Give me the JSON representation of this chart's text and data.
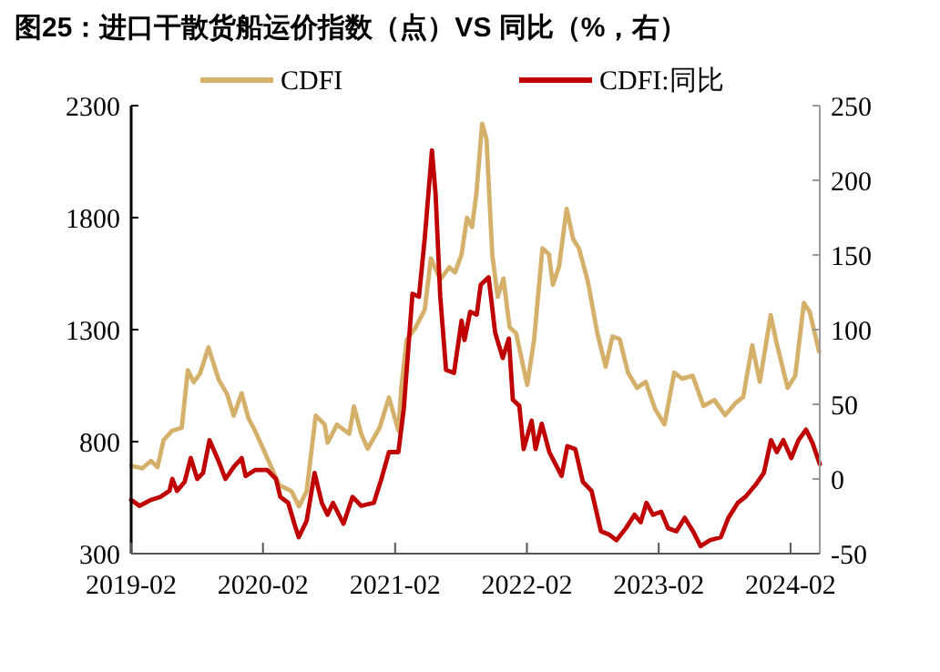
{
  "chart_data": {
    "type": "line",
    "title": "图25：进口干散货船运价指数（点）VS 同比（%，右）",
    "legend": "top",
    "grid": false,
    "line_style": "solid",
    "marker": "none",
    "xlim": [
      "2019-02-01",
      "2024-04-22"
    ],
    "xticks": [
      {
        "value": "2019-02-01",
        "label": "2019-02"
      },
      {
        "value": "2020-02-01",
        "label": "2020-02"
      },
      {
        "value": "2021-02-01",
        "label": "2021-02"
      },
      {
        "value": "2022-02-01",
        "label": "2022-02"
      },
      {
        "value": "2023-02-01",
        "label": "2023-02"
      },
      {
        "value": "2024-02-01",
        "label": "2024-02"
      }
    ],
    "ylim": [
      300,
      2300
    ],
    "yticks": [
      300,
      800,
      1300,
      1800,
      2300
    ],
    "y2lim": [
      -50,
      250
    ],
    "y2ticks": [
      -50,
      0,
      50,
      100,
      150,
      200,
      250
    ],
    "series": [
      {
        "name": "CDFI",
        "color": "#d4b06a",
        "x": [
          "2019-02-01",
          "2019-03-04",
          "2019-03-28",
          "2019-04-15",
          "2019-05-02",
          "2019-05-26",
          "2019-06-21",
          "2019-07-08",
          "2019-07-24",
          "2019-08-11",
          "2019-09-03",
          "2019-10-01",
          "2019-10-25",
          "2019-11-12",
          "2019-12-04",
          "2019-12-23",
          "2020-01-10",
          "2020-02-13",
          "2020-03-17",
          "2020-04-20",
          "2020-05-11",
          "2020-06-01",
          "2020-06-26",
          "2020-07-21",
          "2020-07-29",
          "2020-08-24",
          "2020-09-27",
          "2020-10-10",
          "2020-10-30",
          "2020-11-17",
          "2020-12-20",
          "2021-01-15",
          "2021-02-10",
          "2021-02-18",
          "2021-03-05",
          "2021-03-29",
          "2021-04-24",
          "2021-05-11",
          "2021-06-06",
          "2021-07-01",
          "2021-07-17",
          "2021-08-04",
          "2021-08-19",
          "2021-09-02",
          "2021-09-14",
          "2021-09-30",
          "2021-10-12",
          "2021-10-28",
          "2021-11-12",
          "2021-11-28",
          "2021-12-15",
          "2022-01-02",
          "2022-02-02",
          "2022-02-21",
          "2022-03-16",
          "2022-04-03",
          "2022-04-14",
          "2022-05-01",
          "2022-05-22",
          "2022-06-09",
          "2022-06-25",
          "2022-07-20",
          "2022-08-15",
          "2022-09-07",
          "2022-09-26",
          "2022-10-16",
          "2022-11-08",
          "2022-12-03",
          "2022-12-27",
          "2023-01-22",
          "2023-02-17",
          "2023-03-16",
          "2023-04-07",
          "2023-05-06",
          "2023-06-05",
          "2023-07-05",
          "2023-08-04",
          "2023-09-02",
          "2023-09-23",
          "2023-10-18",
          "2023-11-08",
          "2023-12-08",
          "2023-12-24",
          "2024-01-24",
          "2024-02-14",
          "2024-03-09",
          "2024-03-25",
          "2024-04-20"
        ],
        "values": [
          692,
          681,
          714,
          686,
          808,
          849,
          862,
          1119,
          1065,
          1105,
          1221,
          1078,
          1011,
          916,
          1016,
          903,
          849,
          727,
          606,
          579,
          511,
          579,
          916,
          876,
          795,
          876,
          835,
          957,
          835,
          768,
          862,
          997,
          849,
          1038,
          1254,
          1308,
          1389,
          1618,
          1524,
          1578,
          1555,
          1636,
          1799,
          1758,
          1907,
          2219,
          2151,
          1636,
          1446,
          1528,
          1311,
          1284,
          1053,
          1257,
          1663,
          1636,
          1500,
          1582,
          1839,
          1704,
          1663,
          1514,
          1284,
          1135,
          1270,
          1257,
          1108,
          1040,
          1067,
          945,
          877,
          1108,
          1081,
          1094,
          959,
          986,
          918,
          973,
          1000,
          1230,
          1067,
          1365,
          1243,
          1040,
          1094,
          1419,
          1379,
          1203
        ]
      },
      {
        "name": "CDFI:同比",
        "color": "#c00000",
        "axis": "y2",
        "x": [
          "2019-02-01",
          "2019-02-24",
          "2019-03-28",
          "2019-04-23",
          "2019-05-18",
          "2019-05-26",
          "2019-06-08",
          "2019-06-29",
          "2019-07-16",
          "2019-08-03",
          "2019-08-19",
          "2019-09-06",
          "2019-10-01",
          "2019-10-20",
          "2019-11-12",
          "2019-12-04",
          "2019-12-15",
          "2020-01-10",
          "2020-02-13",
          "2020-03-08",
          "2020-03-20",
          "2020-04-11",
          "2020-04-28",
          "2020-05-10",
          "2020-06-01",
          "2020-06-23",
          "2020-07-13",
          "2020-07-29",
          "2020-08-13",
          "2020-09-11",
          "2020-10-06",
          "2020-10-30",
          "2020-12-04",
          "2020-12-25",
          "2021-01-15",
          "2021-02-10",
          "2021-02-25",
          "2021-03-21",
          "2021-04-08",
          "2021-04-24",
          "2021-05-14",
          "2021-05-24",
          "2021-06-06",
          "2021-06-22",
          "2021-07-14",
          "2021-08-04",
          "2021-08-12",
          "2021-08-28",
          "2021-09-15",
          "2021-09-26",
          "2021-10-18",
          "2021-11-05",
          "2021-11-26",
          "2021-12-13",
          "2021-12-24",
          "2022-01-11",
          "2022-01-23",
          "2022-02-14",
          "2022-02-25",
          "2022-03-14",
          "2022-04-04",
          "2022-05-08",
          "2022-05-24",
          "2022-06-15",
          "2022-07-06",
          "2022-07-30",
          "2022-08-25",
          "2022-09-15",
          "2022-10-07",
          "2022-11-02",
          "2022-11-26",
          "2022-12-13",
          "2022-12-29",
          "2023-01-16",
          "2023-02-08",
          "2023-02-27",
          "2023-03-22",
          "2023-04-14",
          "2023-05-07",
          "2023-05-28",
          "2023-06-23",
          "2023-07-23",
          "2023-08-13",
          "2023-09-08",
          "2023-09-29",
          "2023-10-27",
          "2023-11-19",
          "2023-12-09",
          "2023-12-25",
          "2024-01-12",
          "2024-02-03",
          "2024-02-23",
          "2024-03-15",
          "2024-04-02",
          "2024-04-22"
        ],
        "values": [
          -14,
          -18,
          -14,
          -12,
          -8,
          0,
          -8,
          -2,
          14,
          0,
          4,
          26,
          12,
          0,
          8,
          14,
          2,
          6,
          6,
          0,
          -12,
          -16,
          -30,
          -39,
          -28,
          4,
          -16,
          -24,
          -16,
          -30,
          -12,
          -18,
          -16,
          0,
          18,
          18,
          47,
          124,
          122,
          161,
          220,
          191,
          122,
          73,
          71,
          106,
          93,
          112,
          110,
          130,
          135,
          98,
          81,
          94,
          53,
          49,
          20,
          39,
          20,
          37,
          18,
          2,
          22,
          20,
          -2,
          -8,
          -35,
          -37,
          -41,
          -33,
          -24,
          -29,
          -16,
          -24,
          -22,
          -33,
          -35,
          -26,
          -35,
          -45,
          -41,
          -39,
          -26,
          -16,
          -12,
          -4,
          4,
          26,
          18,
          26,
          14,
          26,
          33,
          24,
          10
        ]
      }
    ]
  }
}
